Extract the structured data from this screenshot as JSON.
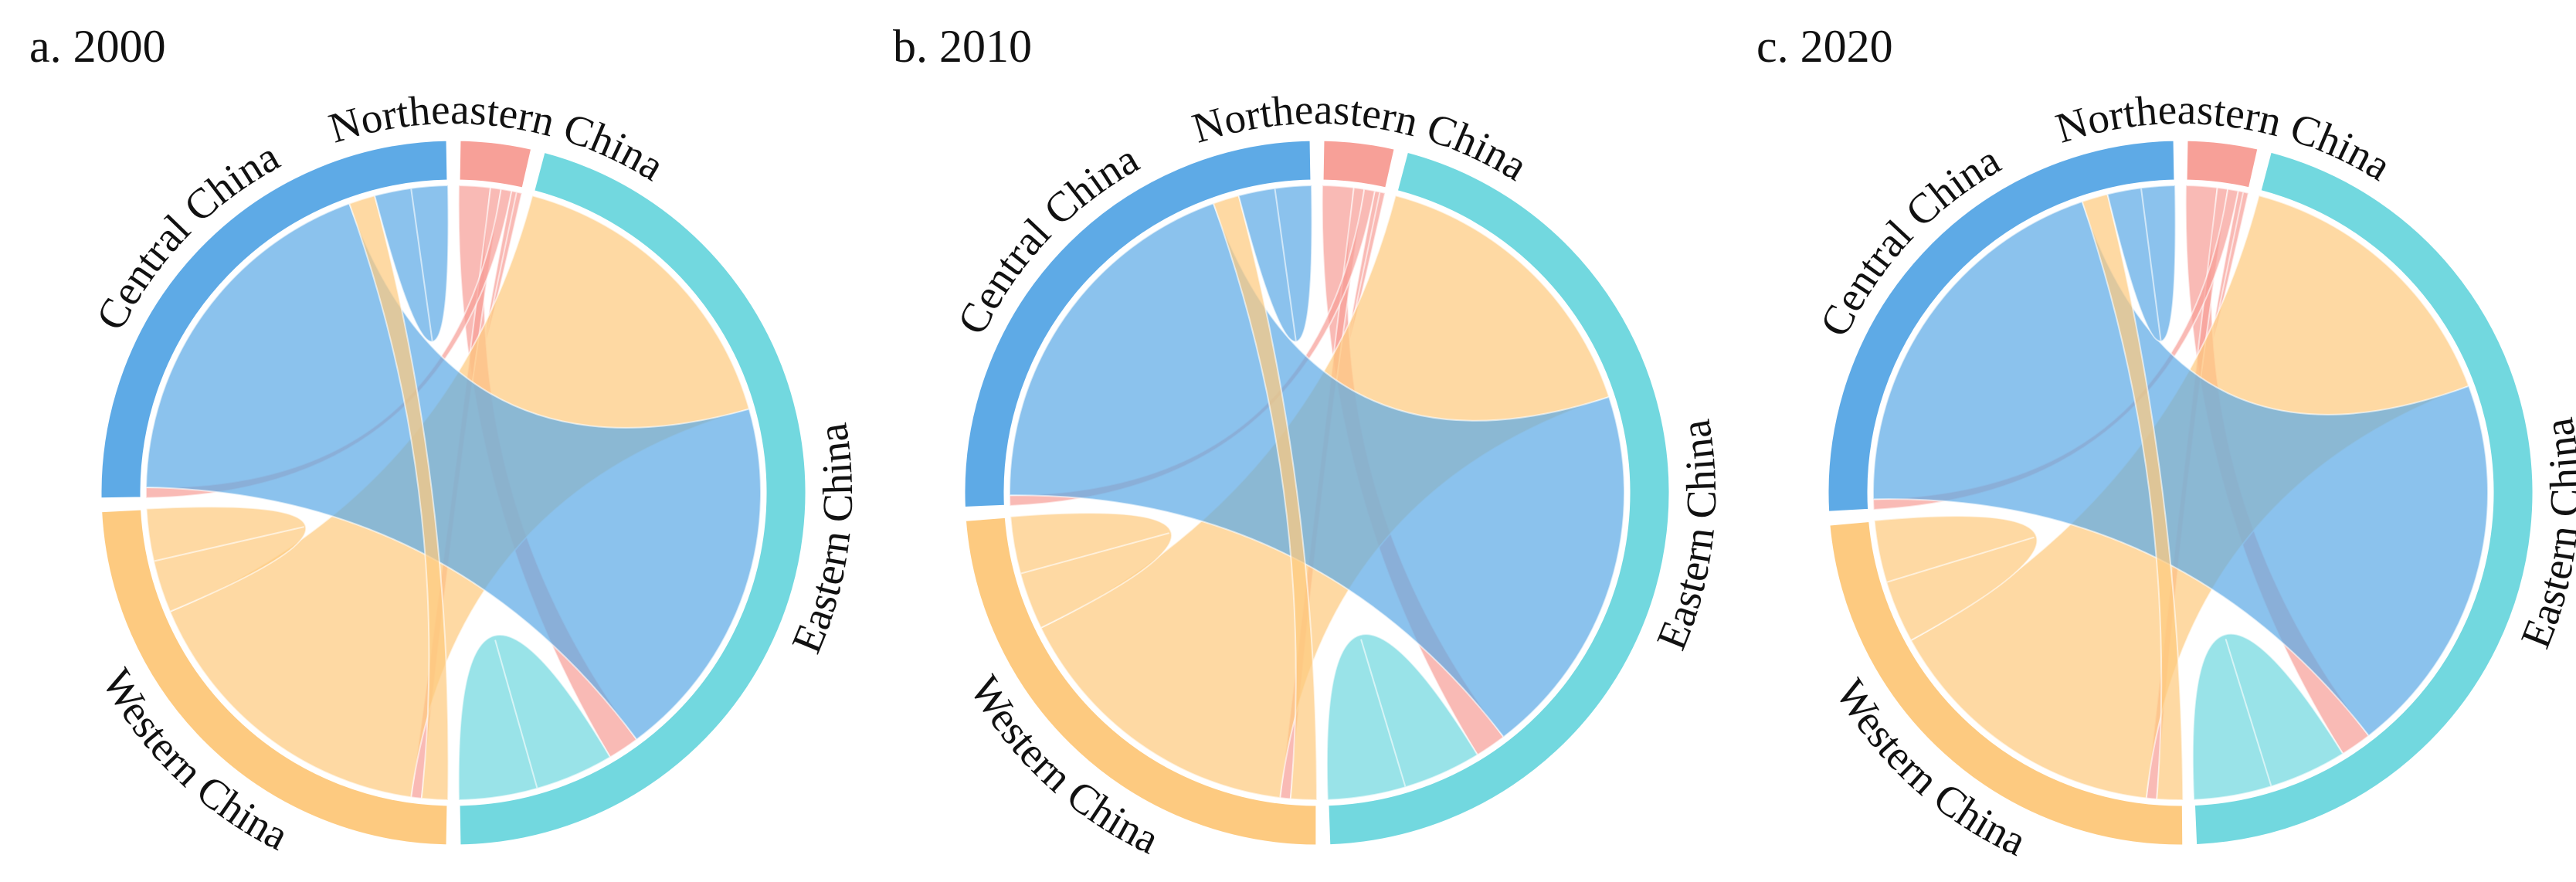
{
  "chart_data": [
    {
      "type": "chord",
      "title": "a. 2000",
      "groups": [
        "Northeastern China",
        "Eastern China",
        "Western China",
        "Central China"
      ],
      "colors": [
        "#f7a098",
        "#72d8df",
        "#fdca80",
        "#5eaae6"
      ],
      "matrix": [
        [
          2,
          6,
          2,
          2
        ],
        [
          6,
          30,
          60,
          70
        ],
        [
          2,
          60,
          20,
          5
        ],
        [
          2,
          70,
          5,
          14
        ]
      ]
    },
    {
      "type": "chord",
      "title": "b. 2010",
      "groups": [
        "Northeastern China",
        "Eastern China",
        "Western China",
        "Central China"
      ],
      "colors": [
        "#f7a098",
        "#72d8df",
        "#fdca80",
        "#5eaae6"
      ],
      "matrix": [
        [
          2,
          6,
          2,
          2
        ],
        [
          6,
          30,
          58,
          72
        ],
        [
          2,
          58,
          22,
          5
        ],
        [
          2,
          72,
          5,
          14
        ]
      ]
    },
    {
      "type": "chord",
      "title": "c. 2020",
      "groups": [
        "Northeastern China",
        "Eastern China",
        "Western China",
        "Central China"
      ],
      "colors": [
        "#f7a098",
        "#72d8df",
        "#fdca80",
        "#5eaae6"
      ],
      "matrix": [
        [
          2,
          6,
          2,
          2
        ],
        [
          6,
          30,
          56,
          74
        ],
        [
          2,
          56,
          24,
          5
        ],
        [
          2,
          74,
          5,
          13
        ]
      ]
    }
  ]
}
